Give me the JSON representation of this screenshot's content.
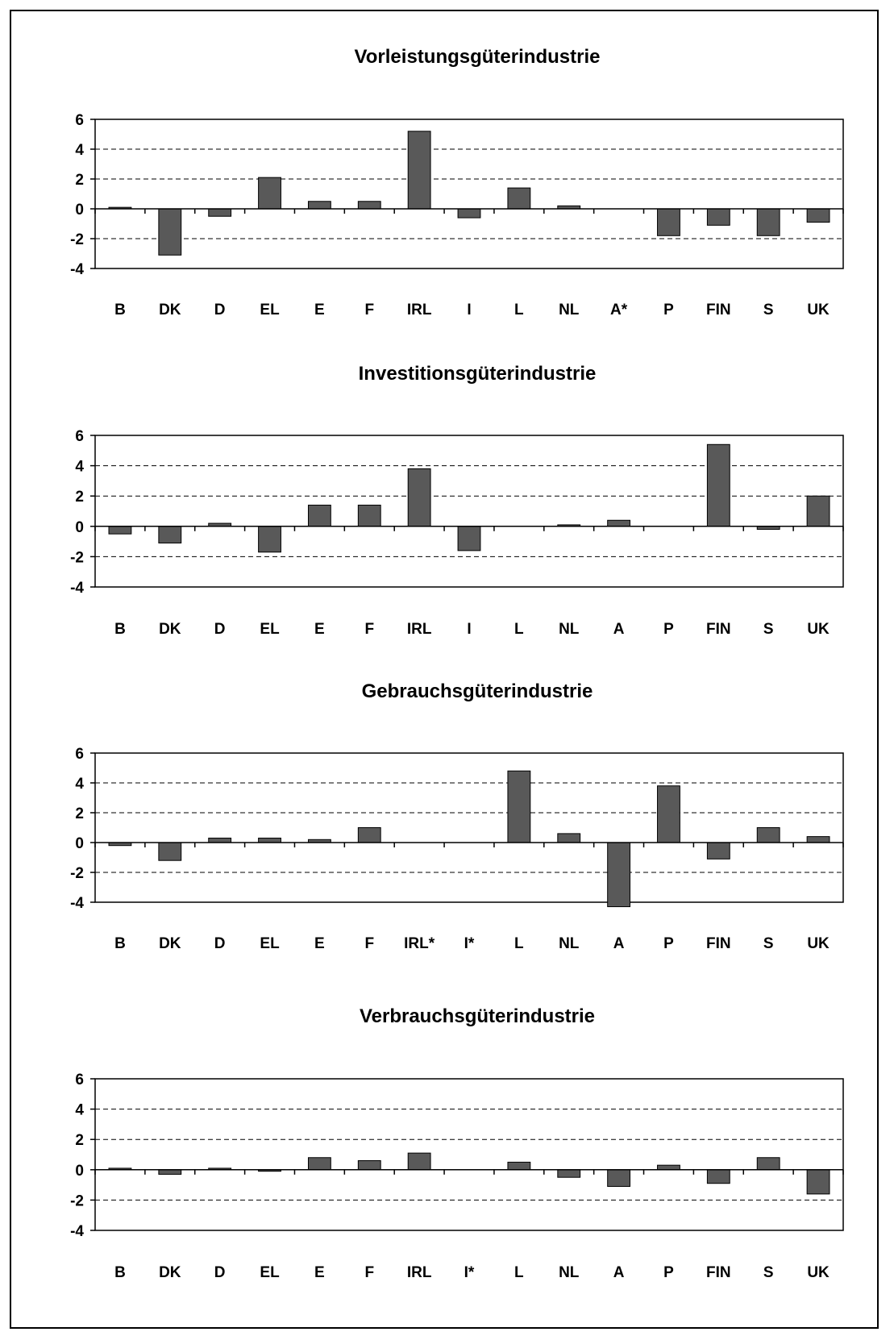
{
  "chart_data": [
    {
      "type": "bar",
      "title": "Vorleistungsgüterindustrie",
      "categories": [
        "B",
        "DK",
        "D",
        "EL",
        "E",
        "F",
        "IRL",
        "I",
        "L",
        "NL",
        "A*",
        "P",
        "FIN",
        "S",
        "UK"
      ],
      "values": [
        0.1,
        -3.1,
        -0.5,
        2.1,
        0.5,
        0.5,
        5.2,
        -0.6,
        1.4,
        0.2,
        0,
        -1.8,
        -1.1,
        -1.8,
        -0.9
      ],
      "ylim": [
        -4,
        6
      ],
      "yticks": [
        "6",
        "4",
        "2",
        "0",
        "-2",
        "-4"
      ],
      "xlabel": "",
      "ylabel": "",
      "grid": "dashed horizontal",
      "bar_color": "#595959"
    },
    {
      "type": "bar",
      "title": "Investitionsgüterindustrie",
      "categories": [
        "B",
        "DK",
        "D",
        "EL",
        "E",
        "F",
        "IRL",
        "I",
        "L",
        "NL",
        "A",
        "P",
        "FIN",
        "S",
        "UK"
      ],
      "values": [
        -0.5,
        -1.1,
        0.2,
        -1.7,
        1.4,
        1.4,
        3.8,
        -1.6,
        0,
        0.1,
        0.4,
        0,
        5.4,
        -0.2,
        2.0
      ],
      "ylim": [
        -4,
        6
      ],
      "yticks": [
        "6",
        "4",
        "2",
        "0",
        "-2",
        "-4"
      ],
      "xlabel": "",
      "ylabel": "",
      "grid": "dashed horizontal",
      "bar_color": "#595959"
    },
    {
      "type": "bar",
      "title": "Gebrauchsgüterindustrie",
      "categories": [
        "B",
        "DK",
        "D",
        "EL",
        "E",
        "F",
        "IRL*",
        "I*",
        "L",
        "NL",
        "A",
        "P",
        "FIN",
        "S",
        "UK"
      ],
      "values": [
        -0.2,
        -1.2,
        0.3,
        0.3,
        0.2,
        1.0,
        0,
        0,
        4.8,
        0.6,
        -4.3,
        3.8,
        -1.1,
        1.0,
        0.4
      ],
      "ylim": [
        -4,
        6
      ],
      "yticks": [
        "6",
        "4",
        "2",
        "0",
        "-2",
        "-4"
      ],
      "xlabel": "",
      "ylabel": "",
      "grid": "dashed horizontal",
      "bar_color": "#595959"
    },
    {
      "type": "bar",
      "title": "Verbrauchsgüterindustrie",
      "categories": [
        "B",
        "DK",
        "D",
        "EL",
        "E",
        "F",
        "IRL",
        "I*",
        "L",
        "NL",
        "A",
        "P",
        "FIN",
        "S",
        "UK"
      ],
      "values": [
        0.1,
        -0.3,
        0.1,
        -0.1,
        0.8,
        0.6,
        1.1,
        0,
        0.5,
        -0.5,
        -1.1,
        0.3,
        -0.9,
        0.8,
        -1.6
      ],
      "ylim": [
        -4,
        6
      ],
      "yticks": [
        "6",
        "4",
        "2",
        "0",
        "-2",
        "-4"
      ],
      "xlabel": "",
      "ylabel": "",
      "grid": "dashed horizontal",
      "bar_color": "#595959"
    }
  ]
}
